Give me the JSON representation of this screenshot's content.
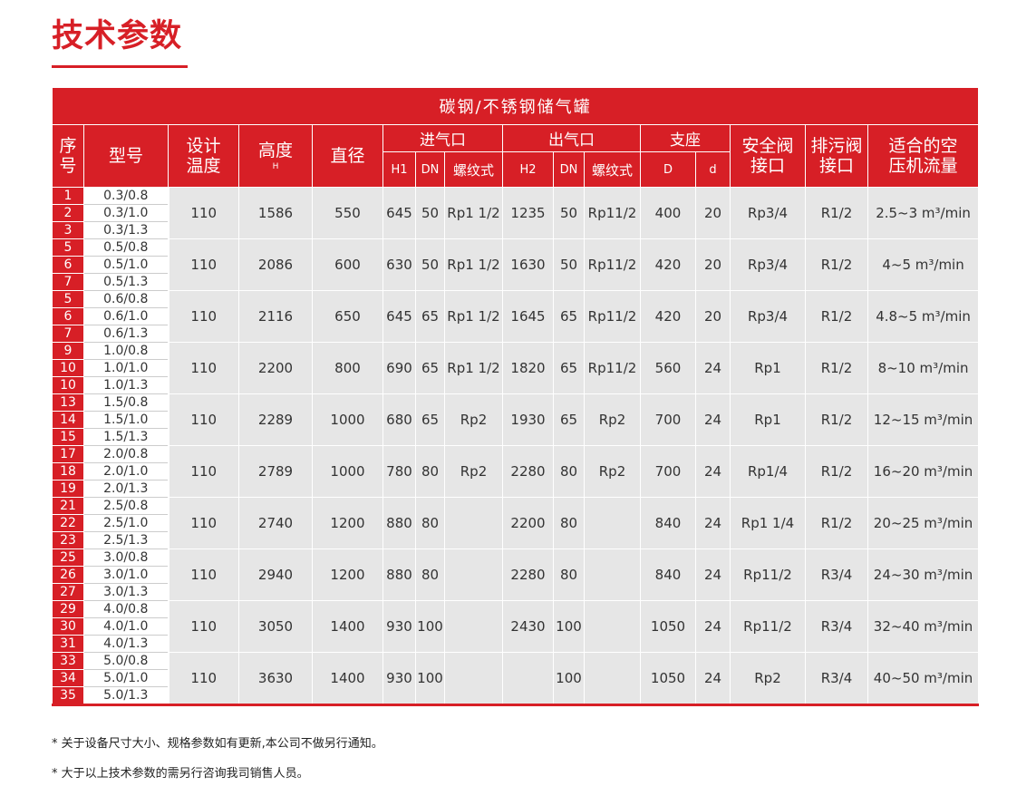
{
  "page_title": "技术参数",
  "table": {
    "banner": "碳钢/不锈钢储气罐",
    "headers": {
      "seq": "序号",
      "model": "型号",
      "temp": "设计温度",
      "height": "高度",
      "height_sub": "H",
      "diameter": "直径",
      "inlet": "进气口",
      "outlet": "出气口",
      "support": "支座",
      "safety_valve": "安全阀接口",
      "drain_valve": "排污阀接口",
      "flow": "适合的空压机流量",
      "inlet_h1": "H1",
      "inlet_dn": "DN",
      "inlet_thread": "螺纹式",
      "outlet_h2": "H2",
      "outlet_dn": "DN",
      "outlet_thread": "螺纹式",
      "support_D": "D",
      "support_d": "d"
    },
    "groups": [
      {
        "seqs": [
          "1",
          "2",
          "3"
        ],
        "models": [
          "0.3/0.8",
          "0.3/1.0",
          "0.3/1.3"
        ],
        "temp": "110",
        "height": "1586",
        "diameter": "550",
        "h1": "645",
        "in_dn": "50",
        "in_thread": "Rp1 1/2",
        "h2": "1235",
        "out_dn": "50",
        "out_thread": "Rp11/2",
        "D": "400",
        "d": "20",
        "safety": "Rp3/4",
        "drain": "R1/2",
        "flow": "2.5~3 m³/min"
      },
      {
        "seqs": [
          "5",
          "6",
          "7"
        ],
        "models": [
          "0.5/0.8",
          "0.5/1.0",
          "0.5/1.3"
        ],
        "temp": "110",
        "height": "2086",
        "diameter": "600",
        "h1": "630",
        "in_dn": "50",
        "in_thread": "Rp1 1/2",
        "h2": "1630",
        "out_dn": "50",
        "out_thread": "Rp11/2",
        "D": "420",
        "d": "20",
        "safety": "Rp3/4",
        "drain": "R1/2",
        "flow": "4~5 m³/min"
      },
      {
        "seqs": [
          "5",
          "6",
          "7"
        ],
        "models": [
          "0.6/0.8",
          "0.6/1.0",
          "0.6/1.3"
        ],
        "temp": "110",
        "height": "2116",
        "diameter": "650",
        "h1": "645",
        "in_dn": "65",
        "in_thread": "Rp1 1/2",
        "h2": "1645",
        "out_dn": "65",
        "out_thread": "Rp11/2",
        "D": "420",
        "d": "20",
        "safety": "Rp3/4",
        "drain": "R1/2",
        "flow": "4.8~5 m³/min"
      },
      {
        "seqs": [
          "9",
          "10",
          "10"
        ],
        "models": [
          "1.0/0.8",
          "1.0/1.0",
          "1.0/1.3"
        ],
        "temp": "110",
        "height": "2200",
        "diameter": "800",
        "h1": "690",
        "in_dn": "65",
        "in_thread": "Rp1 1/2",
        "h2": "1820",
        "out_dn": "65",
        "out_thread": "Rp11/2",
        "D": "560",
        "d": "24",
        "safety": "Rp1",
        "drain": "R1/2",
        "flow": "8~10 m³/min"
      },
      {
        "seqs": [
          "13",
          "14",
          "15"
        ],
        "models": [
          "1.5/0.8",
          "1.5/1.0",
          "1.5/1.3"
        ],
        "temp": "110",
        "height": "2289",
        "diameter": "1000",
        "h1": "680",
        "in_dn": "65",
        "in_thread": "Rp2",
        "h2": "1930",
        "out_dn": "65",
        "out_thread": "Rp2",
        "D": "700",
        "d": "24",
        "safety": "Rp1",
        "drain": "R1/2",
        "flow": "12~15 m³/min"
      },
      {
        "seqs": [
          "17",
          "18",
          "19"
        ],
        "models": [
          "2.0/0.8",
          "2.0/1.0",
          "2.0/1.3"
        ],
        "temp": "110",
        "height": "2789",
        "diameter": "1000",
        "h1": "780",
        "in_dn": "80",
        "in_thread": "Rp2",
        "h2": "2280",
        "out_dn": "80",
        "out_thread": "Rp2",
        "D": "700",
        "d": "24",
        "safety": "Rp1/4",
        "drain": "R1/2",
        "flow": "16~20 m³/min"
      },
      {
        "seqs": [
          "21",
          "22",
          "23"
        ],
        "models": [
          "2.5/0.8",
          "2.5/1.0",
          "2.5/1.3"
        ],
        "temp": "110",
        "height": "2740",
        "diameter": "1200",
        "h1": "880",
        "in_dn": "80",
        "in_thread": "",
        "h2": "2200",
        "out_dn": "80",
        "out_thread": "",
        "D": "840",
        "d": "24",
        "safety": "Rp1 1/4",
        "drain": "R1/2",
        "flow": "20~25 m³/min"
      },
      {
        "seqs": [
          "25",
          "26",
          "27"
        ],
        "models": [
          "3.0/0.8",
          "3.0/1.0",
          "3.0/1.3"
        ],
        "temp": "110",
        "height": "2940",
        "diameter": "1200",
        "h1": "880",
        "in_dn": "80",
        "in_thread": "",
        "h2": "2280",
        "out_dn": "80",
        "out_thread": "",
        "D": "840",
        "d": "24",
        "safety": "Rp11/2",
        "drain": "R3/4",
        "flow": "24~30 m³/min"
      },
      {
        "seqs": [
          "29",
          "30",
          "31"
        ],
        "models": [
          "4.0/0.8",
          "4.0/1.0",
          "4.0/1.3"
        ],
        "temp": "110",
        "height": "3050",
        "diameter": "1400",
        "h1": "930",
        "in_dn": "100",
        "in_thread": "",
        "h2": "2430",
        "out_dn": "100",
        "out_thread": "",
        "D": "1050",
        "d": "24",
        "safety": "Rp11/2",
        "drain": "R3/4",
        "flow": "32~40 m³/min"
      },
      {
        "seqs": [
          "33",
          "34",
          "35"
        ],
        "models": [
          "5.0/0.8",
          "5.0/1.0",
          "5.0/1.3"
        ],
        "temp": "110",
        "height": "3630",
        "diameter": "1400",
        "h1": "930",
        "in_dn": "100",
        "in_thread": "",
        "h2": "",
        "out_dn": "100",
        "out_thread": "",
        "D": "1050",
        "d": "24",
        "safety": "Rp2",
        "drain": "R3/4",
        "flow": "40~50 m³/min"
      }
    ]
  },
  "footnotes": [
    "* 关于设备尺寸大小、规格参数如有更新,本公司不做另行通知。",
    "* 大于以上技术参数的需另行咨询我司销售人员。"
  ],
  "colors": {
    "accent": "#d71f26",
    "cell_bg": "#e6e6e6"
  }
}
